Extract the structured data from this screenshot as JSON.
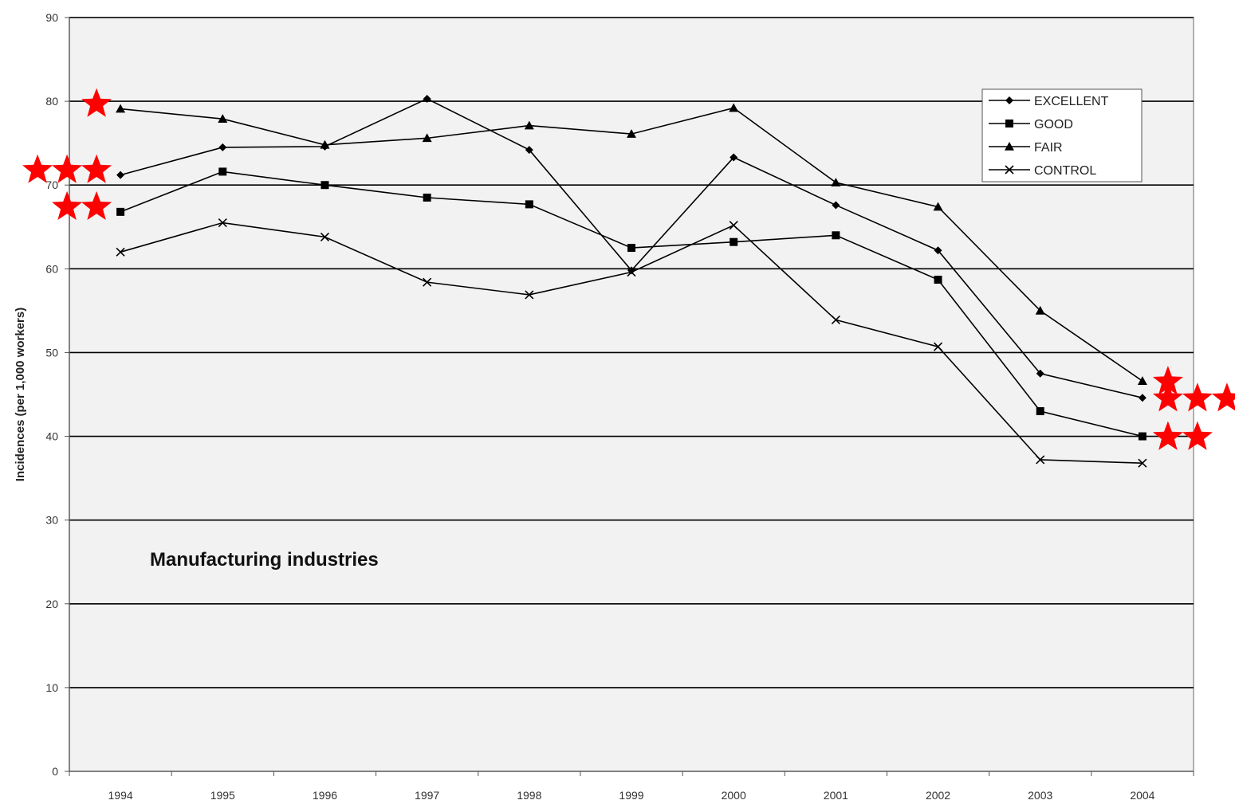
{
  "chart_data": {
    "type": "line",
    "title": "",
    "xlabel": "",
    "ylabel": "Incidences (per 1,000 workers)",
    "annotation": "Manufacturing industries",
    "categories": [
      "1994",
      "1995",
      "1996",
      "1997",
      "1998",
      "1999",
      "2000",
      "2001",
      "2002",
      "2003",
      "2004"
    ],
    "ylim": [
      0,
      90
    ],
    "yticks": [
      "0",
      "10",
      "20",
      "30",
      "40",
      "50",
      "60",
      "70",
      "80",
      "90"
    ],
    "grid": "horizontal",
    "legend_position": "top-right",
    "series": [
      {
        "name": "EXCELLENT",
        "marker": "diamond",
        "values": [
          71.2,
          74.5,
          74.6,
          80.3,
          74.2,
          59.8,
          73.3,
          67.6,
          62.2,
          47.5,
          44.6
        ],
        "rating_left": "★★★",
        "rating_right": "★★★"
      },
      {
        "name": "GOOD",
        "marker": "square",
        "values": [
          66.8,
          71.6,
          70.0,
          68.5,
          67.7,
          62.5,
          63.2,
          64.0,
          58.7,
          43.0,
          40.0
        ],
        "rating_left": "★★",
        "rating_right": "★★"
      },
      {
        "name": "FAIR",
        "marker": "triangle",
        "values": [
          79.1,
          77.9,
          74.8,
          75.6,
          77.1,
          76.1,
          79.2,
          70.3,
          67.4,
          55.0,
          46.6
        ],
        "rating_left": "★",
        "rating_right": "★"
      },
      {
        "name": "CONTROL",
        "marker": "x",
        "values": [
          62.0,
          65.5,
          63.8,
          58.4,
          56.9,
          59.6,
          65.2,
          53.9,
          50.7,
          37.2,
          36.8
        ]
      }
    ],
    "colors": {
      "line": "#000000",
      "star": "#ff0000",
      "plot_background": "#f2f2f2",
      "gridline": "#000000"
    }
  }
}
